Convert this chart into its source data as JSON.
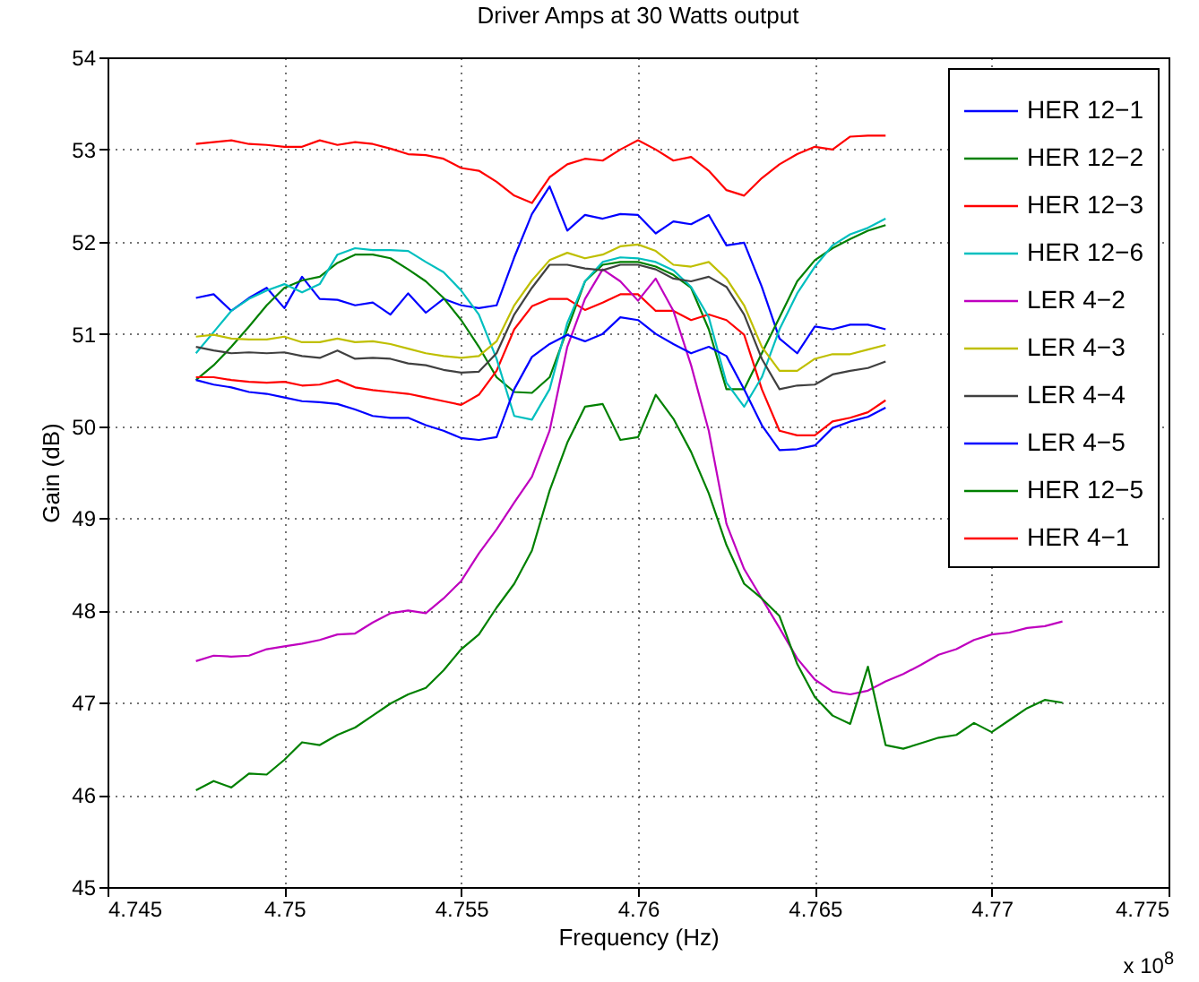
{
  "chart_data": {
    "type": "line",
    "title": "Driver Amps at 30 Watts output",
    "xlabel": "Frequency (Hz)",
    "ylabel": "Gain (dB)",
    "annotations": [
      "x 10$^{8}$"
    ],
    "x": [
      4.7475,
      4.748,
      4.7485,
      4.749,
      4.7495,
      4.75,
      4.7505,
      4.751,
      4.7515,
      4.752,
      4.7525,
      4.753,
      4.7535,
      4.754,
      4.7545,
      4.755,
      4.7555,
      4.756,
      4.7565,
      4.757,
      4.7575,
      4.758,
      4.7585,
      4.759,
      4.7595,
      4.76,
      4.7605,
      4.761,
      4.7615,
      4.762,
      4.7625,
      4.763,
      4.7635,
      4.764,
      4.7645,
      4.765,
      4.7655,
      4.766,
      4.7665,
      4.767,
      4.7675,
      4.768,
      4.7685,
      4.769,
      4.7695,
      4.77,
      4.7705,
      4.771,
      4.7715,
      4.772
    ],
    "series": [
      {
        "name": "HER 12−1",
        "color": "#0000ff",
        "values": [
          51.39,
          51.43,
          51.25,
          51.39,
          51.5,
          51.28,
          51.62,
          51.38,
          51.37,
          51.31,
          51.34,
          51.21,
          51.44,
          51.23,
          51.38,
          51.31,
          51.28,
          51.31,
          51.83,
          52.3,
          52.6,
          52.12,
          52.29,
          52.25,
          52.3,
          52.29,
          52.09,
          52.22,
          52.19,
          52.29,
          51.96,
          51.99,
          51.51,
          50.95,
          50.79,
          51.08,
          51.05,
          51.1,
          51.1,
          51.05,
          null,
          null,
          null,
          null,
          null,
          null,
          null,
          null,
          null,
          null
        ]
      },
      {
        "name": "HER 12−2",
        "color": "#008000",
        "values": [
          50.5,
          50.66,
          50.86,
          51.08,
          51.31,
          51.5,
          51.58,
          51.62,
          51.77,
          51.86,
          51.86,
          51.82,
          51.7,
          51.57,
          51.39,
          51.15,
          50.86,
          50.53,
          50.37,
          50.36,
          50.53,
          51.05,
          51.57,
          51.75,
          51.78,
          51.78,
          51.73,
          51.64,
          51.5,
          51.05,
          50.4,
          50.4,
          50.79,
          51.18,
          51.57,
          51.8,
          51.93,
          52.03,
          52.12,
          52.18,
          null,
          null,
          null,
          null,
          null,
          null,
          null,
          null,
          null,
          null
        ]
      },
      {
        "name": "HER 12−3",
        "color": "#ff0000",
        "values": [
          50.53,
          50.53,
          50.5,
          50.48,
          50.47,
          50.48,
          50.44,
          50.45,
          50.5,
          50.42,
          50.39,
          50.37,
          50.35,
          50.31,
          50.27,
          50.23,
          50.34,
          50.6,
          51.05,
          51.3,
          51.38,
          51.38,
          51.26,
          51.34,
          51.43,
          51.43,
          51.25,
          51.25,
          51.15,
          51.21,
          51.15,
          50.99,
          50.4,
          49.95,
          49.9,
          49.9,
          50.05,
          50.09,
          50.15,
          50.28,
          null,
          null,
          null,
          null,
          null,
          null,
          null,
          null,
          null,
          null
        ]
      },
      {
        "name": "HER 12−6",
        "color": "#00bfbf",
        "values": [
          50.79,
          51.02,
          51.25,
          51.38,
          51.47,
          51.54,
          51.45,
          51.54,
          51.86,
          51.93,
          51.91,
          51.91,
          51.9,
          51.78,
          51.67,
          51.47,
          51.21,
          50.73,
          50.11,
          50.07,
          50.4,
          51.12,
          51.57,
          51.78,
          51.83,
          51.82,
          51.78,
          51.69,
          51.51,
          51.18,
          50.47,
          50.21,
          50.53,
          51.05,
          51.44,
          51.73,
          51.96,
          52.08,
          52.15,
          52.25,
          null,
          null,
          null,
          null,
          null,
          null,
          null,
          null,
          null,
          null
        ]
      },
      {
        "name": "LER 4−2",
        "color": "#bf00bf",
        "values": [
          47.45,
          47.51,
          47.5,
          47.51,
          47.58,
          47.61,
          47.64,
          47.68,
          47.74,
          47.75,
          47.87,
          47.97,
          48.0,
          47.97,
          48.13,
          48.32,
          48.62,
          48.88,
          49.17,
          49.45,
          49.95,
          50.86,
          51.38,
          51.7,
          51.57,
          51.36,
          51.6,
          51.25,
          50.66,
          49.95,
          48.94,
          48.45,
          48.13,
          47.81,
          47.48,
          47.25,
          47.12,
          47.09,
          47.13,
          47.23,
          47.31,
          47.41,
          47.52,
          47.58,
          47.68,
          47.74,
          47.76,
          47.81,
          47.83,
          47.88
        ]
      },
      {
        "name": "LER 4−3",
        "color": "#bfbf00",
        "values": [
          50.97,
          50.99,
          50.95,
          50.94,
          50.94,
          50.97,
          50.91,
          50.91,
          50.95,
          50.91,
          50.92,
          50.89,
          50.84,
          50.79,
          50.76,
          50.74,
          50.76,
          50.92,
          51.31,
          51.58,
          51.8,
          51.88,
          51.82,
          51.86,
          51.95,
          51.97,
          51.9,
          51.75,
          51.73,
          51.78,
          51.6,
          51.31,
          50.86,
          50.6,
          50.6,
          50.73,
          50.78,
          50.78,
          50.83,
          50.88,
          null,
          null,
          null,
          null,
          null,
          null,
          null,
          null,
          null,
          null
        ]
      },
      {
        "name": "LER 4−4",
        "color": "#404040",
        "values": [
          50.86,
          50.82,
          50.79,
          50.8,
          50.79,
          50.8,
          50.76,
          50.74,
          50.82,
          50.73,
          50.74,
          50.73,
          50.68,
          50.66,
          50.61,
          50.58,
          50.59,
          50.79,
          51.21,
          51.5,
          51.75,
          51.75,
          51.71,
          51.69,
          51.75,
          51.75,
          51.7,
          51.6,
          51.57,
          51.62,
          51.51,
          51.21,
          50.73,
          50.4,
          50.44,
          50.45,
          50.56,
          50.6,
          50.63,
          50.7,
          null,
          null,
          null,
          null,
          null,
          null,
          null,
          null,
          null,
          null
        ]
      },
      {
        "name": "LER 4−5",
        "color": "#0000ff",
        "values": [
          50.5,
          50.45,
          50.42,
          50.37,
          50.35,
          50.31,
          50.27,
          50.26,
          50.24,
          50.18,
          50.11,
          50.09,
          50.09,
          50.01,
          49.95,
          49.87,
          49.85,
          49.88,
          50.4,
          50.75,
          50.89,
          50.99,
          50.92,
          51.0,
          51.18,
          51.15,
          51.0,
          50.89,
          50.79,
          50.86,
          50.76,
          50.4,
          50.01,
          49.74,
          49.75,
          49.79,
          49.98,
          50.05,
          50.1,
          50.2,
          null,
          null,
          null,
          null,
          null,
          null,
          null,
          null,
          null,
          null
        ]
      },
      {
        "name": "HER 12−5",
        "color": "#008000",
        "values": [
          46.05,
          46.15,
          46.08,
          46.23,
          46.22,
          46.38,
          46.57,
          46.54,
          46.65,
          46.73,
          46.86,
          46.99,
          47.09,
          47.16,
          47.35,
          47.58,
          47.74,
          48.03,
          48.29,
          48.65,
          49.3,
          49.82,
          50.21,
          50.24,
          49.85,
          49.88,
          50.34,
          50.08,
          49.72,
          49.27,
          48.71,
          48.29,
          48.13,
          47.94,
          47.42,
          47.06,
          46.86,
          46.77,
          47.39,
          46.54,
          46.5,
          46.56,
          46.62,
          46.65,
          46.78,
          46.68,
          46.81,
          46.94,
          47.03,
          47.0
        ]
      },
      {
        "name": "HER 4−1",
        "color": "#ff0000",
        "values": [
          53.06,
          53.08,
          53.1,
          53.06,
          53.05,
          53.03,
          53.03,
          53.1,
          53.05,
          53.08,
          53.06,
          53.01,
          52.95,
          52.94,
          52.9,
          52.8,
          52.77,
          52.65,
          52.5,
          52.42,
          52.7,
          52.84,
          52.9,
          52.88,
          53.0,
          53.1,
          53.0,
          52.88,
          52.92,
          52.77,
          52.56,
          52.5,
          52.69,
          52.84,
          52.95,
          53.03,
          53.0,
          53.14,
          53.15,
          53.15,
          null,
          null,
          null,
          null,
          null,
          null,
          null,
          null,
          null,
          null
        ]
      }
    ],
    "xlim": [
      4.745,
      4.775
    ],
    "xticks": [
      4.745,
      4.75,
      4.755,
      4.76,
      4.765,
      4.77,
      4.775
    ],
    "ylim": [
      45,
      54
    ],
    "yticks": [
      45,
      46,
      47,
      48,
      49,
      50,
      51,
      52,
      53,
      54
    ],
    "grid": true,
    "legend": "top right",
    "line_style": "solid"
  }
}
